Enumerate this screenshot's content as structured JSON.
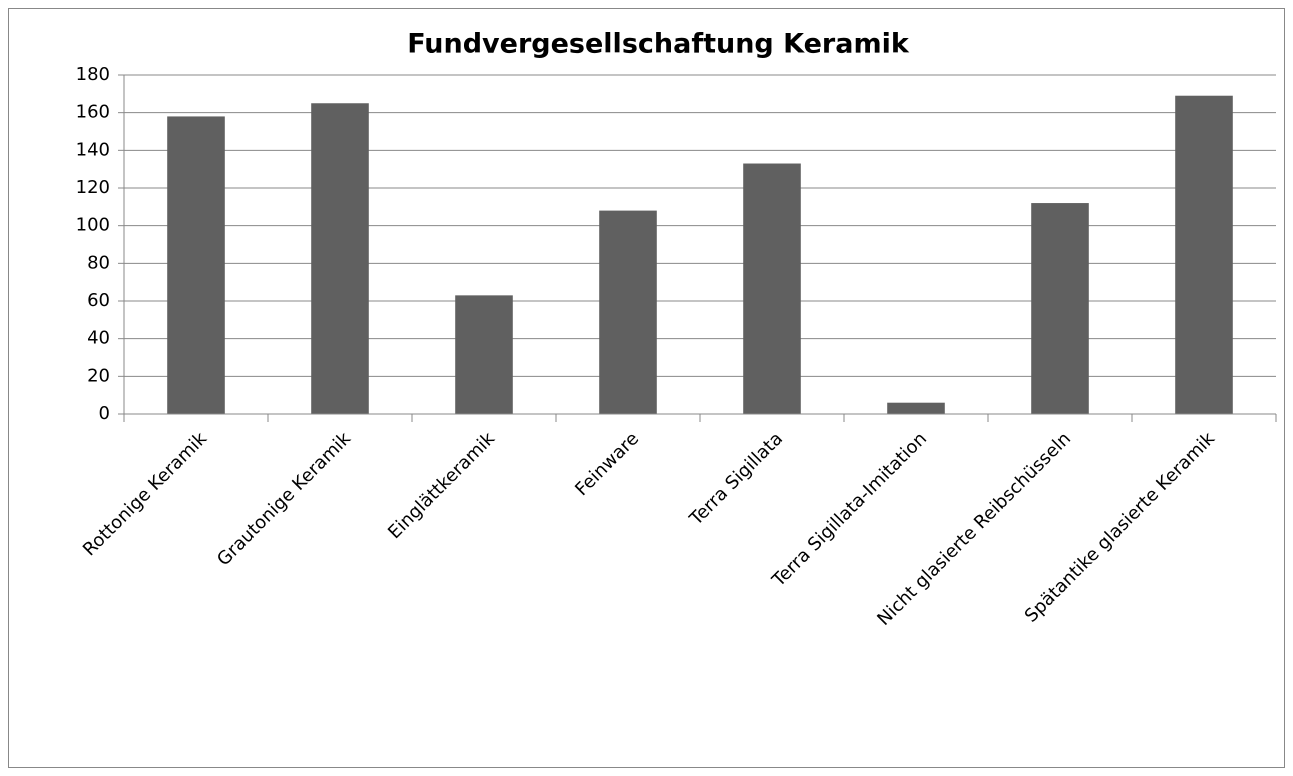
{
  "chart_data": {
    "type": "bar",
    "title": "Fundvergesellschaftung Keramik",
    "categories": [
      "Rottonige Keramik",
      "Grautonige Keramik",
      "Einglättkeramik",
      "Feinware",
      "Terra Sigillata",
      "Terra Sigillata-Imitation",
      "Nicht glasierte Reibschüsseln",
      "Spätantike glasierte Keramik"
    ],
    "values": [
      158,
      165,
      63,
      108,
      133,
      6,
      112,
      169
    ],
    "color": "#606060",
    "ylim": [
      0,
      180
    ],
    "yticks": [
      0,
      20,
      40,
      60,
      80,
      100,
      120,
      140,
      160,
      180
    ],
    "grid": true
  }
}
